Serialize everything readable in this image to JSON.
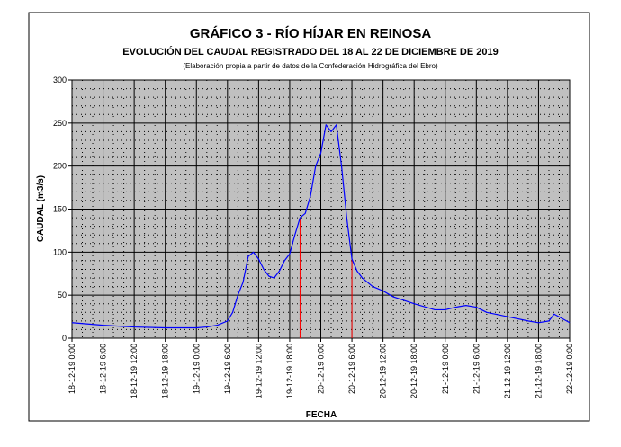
{
  "chart_data": {
    "type": "line",
    "title": "GRÁFICO 3 - RÍO HÍJAR EN REINOSA",
    "subtitle": "EVOLUCIÓN DEL CAUDAL REGISTRADO DEL 18 AL 22 DE DICIEMBRE DE 2019",
    "note": "(Elaboración propia a partir de datos de la Confederación Hidrográfica del Ebro)",
    "y_label": "CAUDAL (m3/s)",
    "x_label": "FECHA",
    "x": [
      0,
      6,
      12,
      18,
      24,
      26,
      28,
      30,
      31,
      32,
      33,
      34,
      35,
      36,
      37,
      38,
      39,
      40,
      41,
      42,
      43,
      44,
      45,
      46,
      47,
      48,
      49,
      50,
      51,
      52,
      53,
      54,
      55,
      56,
      58,
      60,
      62,
      66,
      70,
      72,
      74,
      76,
      78,
      80,
      84,
      88,
      90,
      92,
      93,
      96
    ],
    "series": [
      {
        "name": "Caudal",
        "color": "#0000ff",
        "values": [
          18,
          15,
          13,
          12,
          12,
          13,
          15,
          20,
          30,
          50,
          65,
          95,
          100,
          92,
          80,
          72,
          70,
          78,
          90,
          98,
          120,
          140,
          145,
          165,
          200,
          215,
          248,
          240,
          248,
          200,
          140,
          92,
          78,
          70,
          60,
          55,
          48,
          40,
          33,
          33,
          36,
          38,
          36,
          30,
          25,
          20,
          18,
          20,
          28,
          18
        ]
      }
    ],
    "vlines": [
      44,
      54
    ],
    "vline_color": "#ff0000",
    "xlim": [
      0,
      96
    ],
    "xticks": [
      {
        "value": 0,
        "label": "18-12-19 0:00"
      },
      {
        "value": 6,
        "label": "18-12-19 6:00"
      },
      {
        "value": 12,
        "label": "18-12-19 12:00"
      },
      {
        "value": 18,
        "label": "18-12-19 18:00"
      },
      {
        "value": 24,
        "label": "19-12-19 0:00"
      },
      {
        "value": 30,
        "label": "19-12-19 6:00"
      },
      {
        "value": 36,
        "label": "19-12-19 12:00"
      },
      {
        "value": 42,
        "label": "19-12-19 18:00"
      },
      {
        "value": 48,
        "label": "20-12-19 0:00"
      },
      {
        "value": 54,
        "label": "20-12-19 6:00"
      },
      {
        "value": 60,
        "label": "20-12-19 12:00"
      },
      {
        "value": 66,
        "label": "20-12-19 18:00"
      },
      {
        "value": 72,
        "label": "21-12-19 0:00"
      },
      {
        "value": 78,
        "label": "21-12-19 6:00"
      },
      {
        "value": 84,
        "label": "21-12-19 12:00"
      },
      {
        "value": 90,
        "label": "21-12-19 18:00"
      },
      {
        "value": 96,
        "label": "22-12-19 0:00"
      }
    ],
    "ylim": [
      0,
      300
    ],
    "yticks": [
      0,
      50,
      100,
      150,
      200,
      250,
      300
    ],
    "grid": true
  }
}
